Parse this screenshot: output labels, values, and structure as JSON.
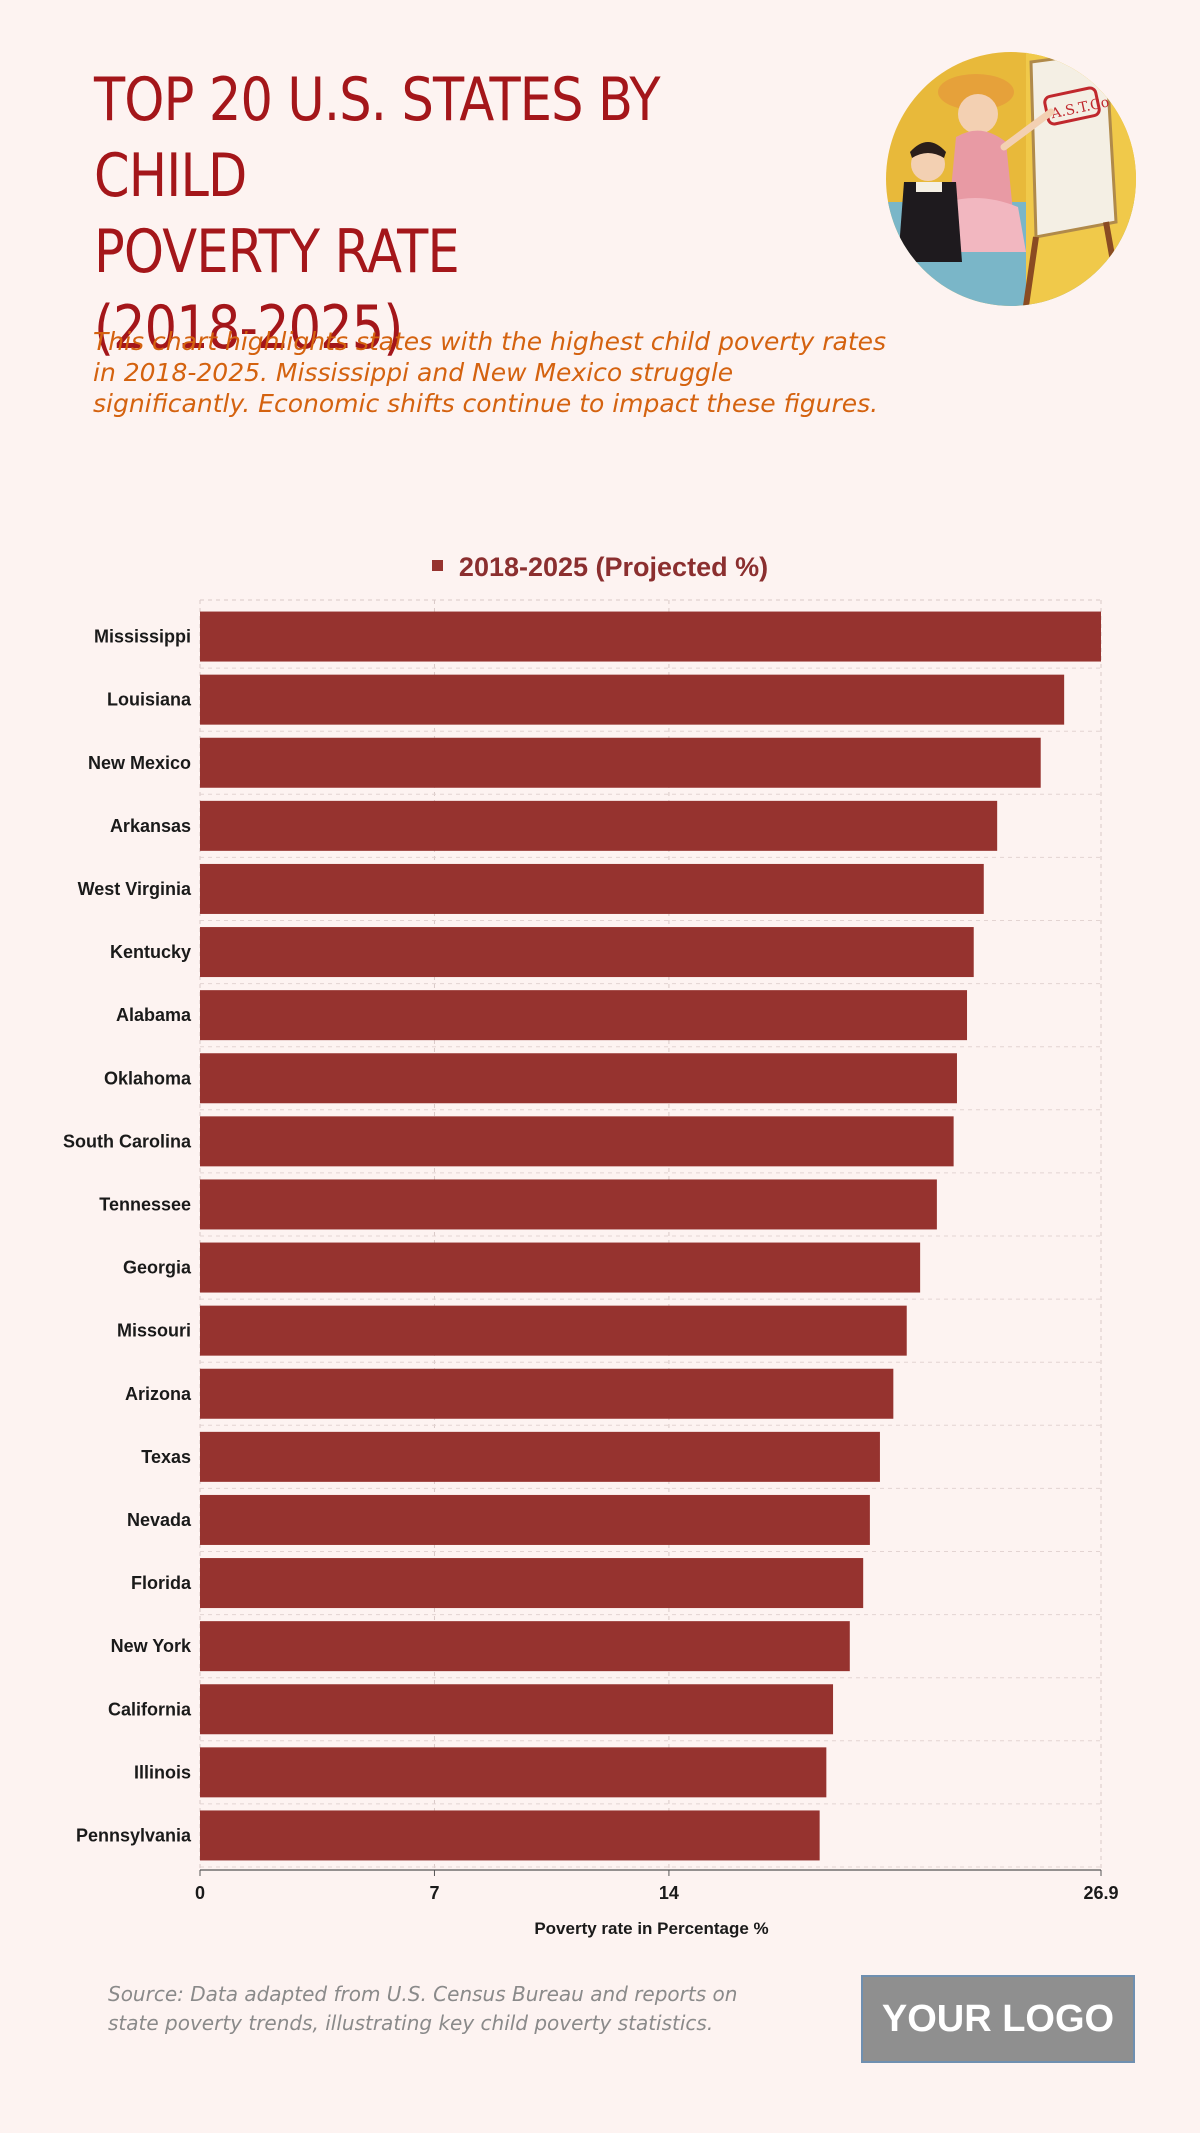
{
  "header": {
    "title_lines": [
      "TOP 20 U.S. STATES BY CHILD",
      "POVERTY RATE",
      "(2018-2025)"
    ],
    "subtitle_lines": [
      "This chart highlights states with the highest child poverty rates",
      "in 2018-2025. Mississippi and New Mexico struggle",
      "significantly. Economic shifts continue to impact these figures."
    ]
  },
  "footer": {
    "source_lines": [
      "Source: Data adapted from U.S. Census Bureau and reports on",
      "state poverty trends, illustrating key child poverty statistics."
    ],
    "logo_text": "YOUR LOGO"
  },
  "colors": {
    "bar": "#96332f",
    "title": "#a4161a",
    "subtitle": "#d4620f"
  },
  "chart_data": {
    "type": "bar",
    "orientation": "horizontal",
    "legend": [
      "2018-2025 (Projected %)"
    ],
    "xlabel": "Poverty rate in Percentage %",
    "xlim": [
      0,
      26.9
    ],
    "xticks": [
      0,
      7,
      14,
      26.9
    ],
    "grid": true,
    "categories": [
      "Mississippi",
      "Louisiana",
      "New Mexico",
      "Arkansas",
      "West Virginia",
      "Kentucky",
      "Alabama",
      "Oklahoma",
      "South Carolina",
      "Tennessee",
      "Georgia",
      "Missouri",
      "Arizona",
      "Texas",
      "Nevada",
      "Florida",
      "New York",
      "California",
      "Illinois",
      "Pennsylvania"
    ],
    "series": [
      {
        "name": "2018-2025 (Projected %)",
        "values": [
          26.9,
          25.8,
          25.1,
          23.8,
          23.4,
          23.1,
          22.9,
          22.6,
          22.5,
          22.0,
          21.5,
          21.1,
          20.7,
          20.3,
          20.0,
          19.8,
          19.4,
          18.9,
          18.7,
          18.5
        ]
      }
    ]
  }
}
